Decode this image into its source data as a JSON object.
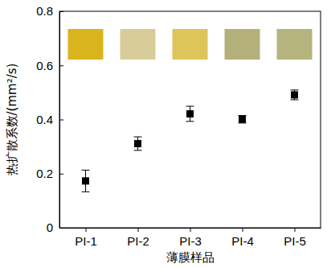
{
  "chart_data": {
    "type": "scatter",
    "x_label": "薄膜样品",
    "y_label": "热扩散系数/(mm²/s)",
    "categories": [
      "PI-1",
      "PI-2",
      "PI-3",
      "PI-4",
      "PI-5"
    ],
    "values": [
      0.173,
      0.311,
      0.421,
      0.401,
      0.491
    ],
    "errors": [
      0.04,
      0.025,
      0.028,
      0.014,
      0.018
    ],
    "color": "#000000",
    "marker": "square",
    "ylim": [
      0,
      0.8
    ],
    "yticks": [
      0,
      0.2,
      0.4,
      0.6,
      0.8
    ]
  }
}
